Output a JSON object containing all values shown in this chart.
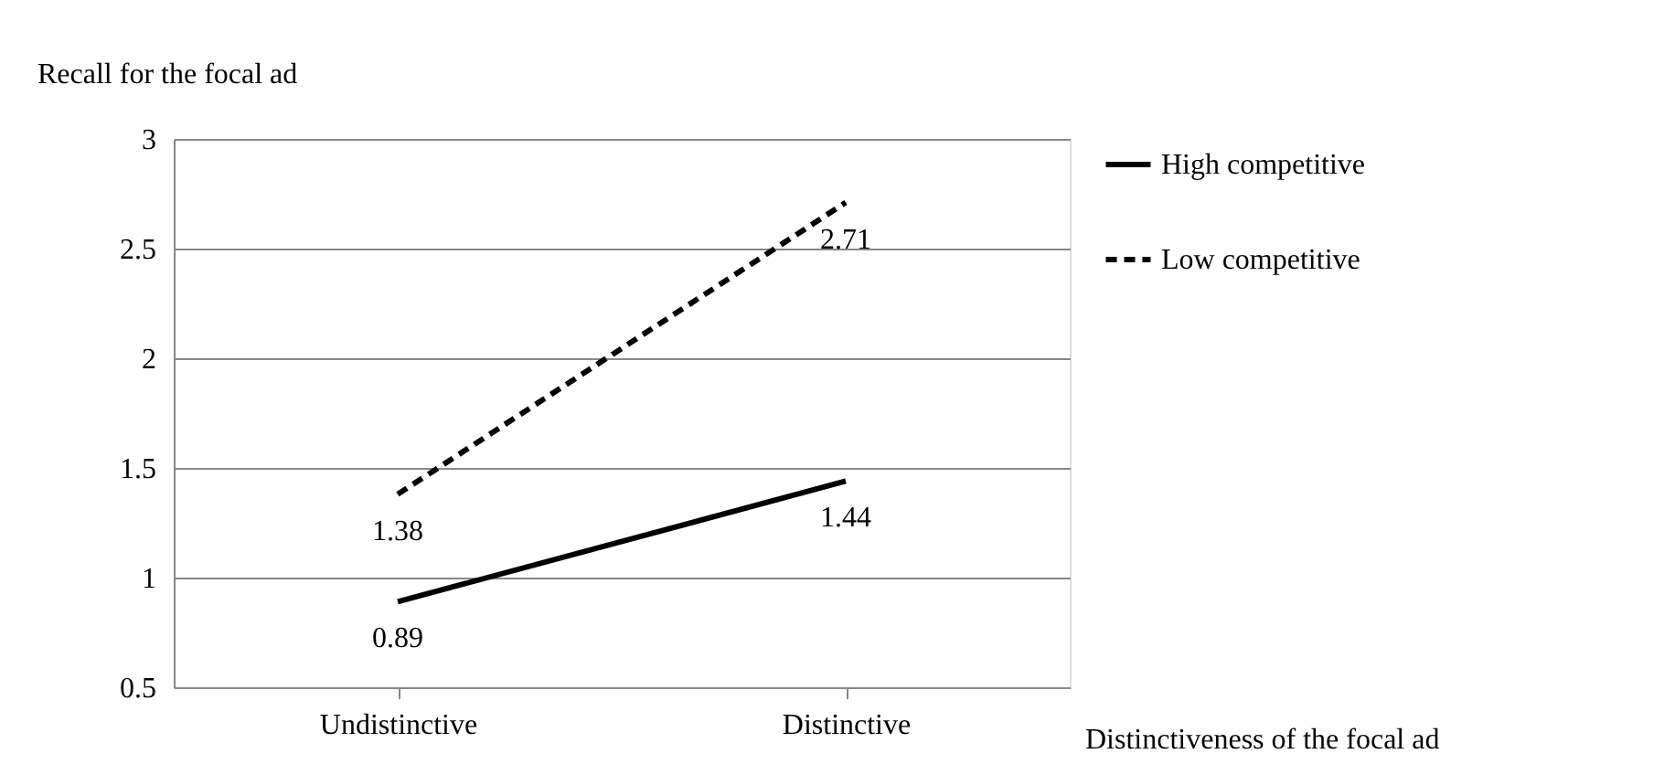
{
  "chart_data": {
    "type": "line",
    "xlabel": "Distinctiveness of the focal ad",
    "ylabel": "Recall for the focal ad",
    "categories": [
      "Undistinctive",
      "Distinctive"
    ],
    "series": [
      {
        "name": "High competitive",
        "color": "#000000",
        "line_style": "solid",
        "values": [
          0.89,
          1.44
        ]
      },
      {
        "name": "Low competitive",
        "color": "#000000",
        "line_style": "dashed",
        "values": [
          1.38,
          2.71
        ]
      }
    ],
    "ylim": [
      0.5,
      3
    ],
    "yticks": [
      0.5,
      1,
      1.5,
      2,
      2.5,
      3
    ],
    "grid": "y",
    "legend": "right",
    "data_labels": true
  }
}
